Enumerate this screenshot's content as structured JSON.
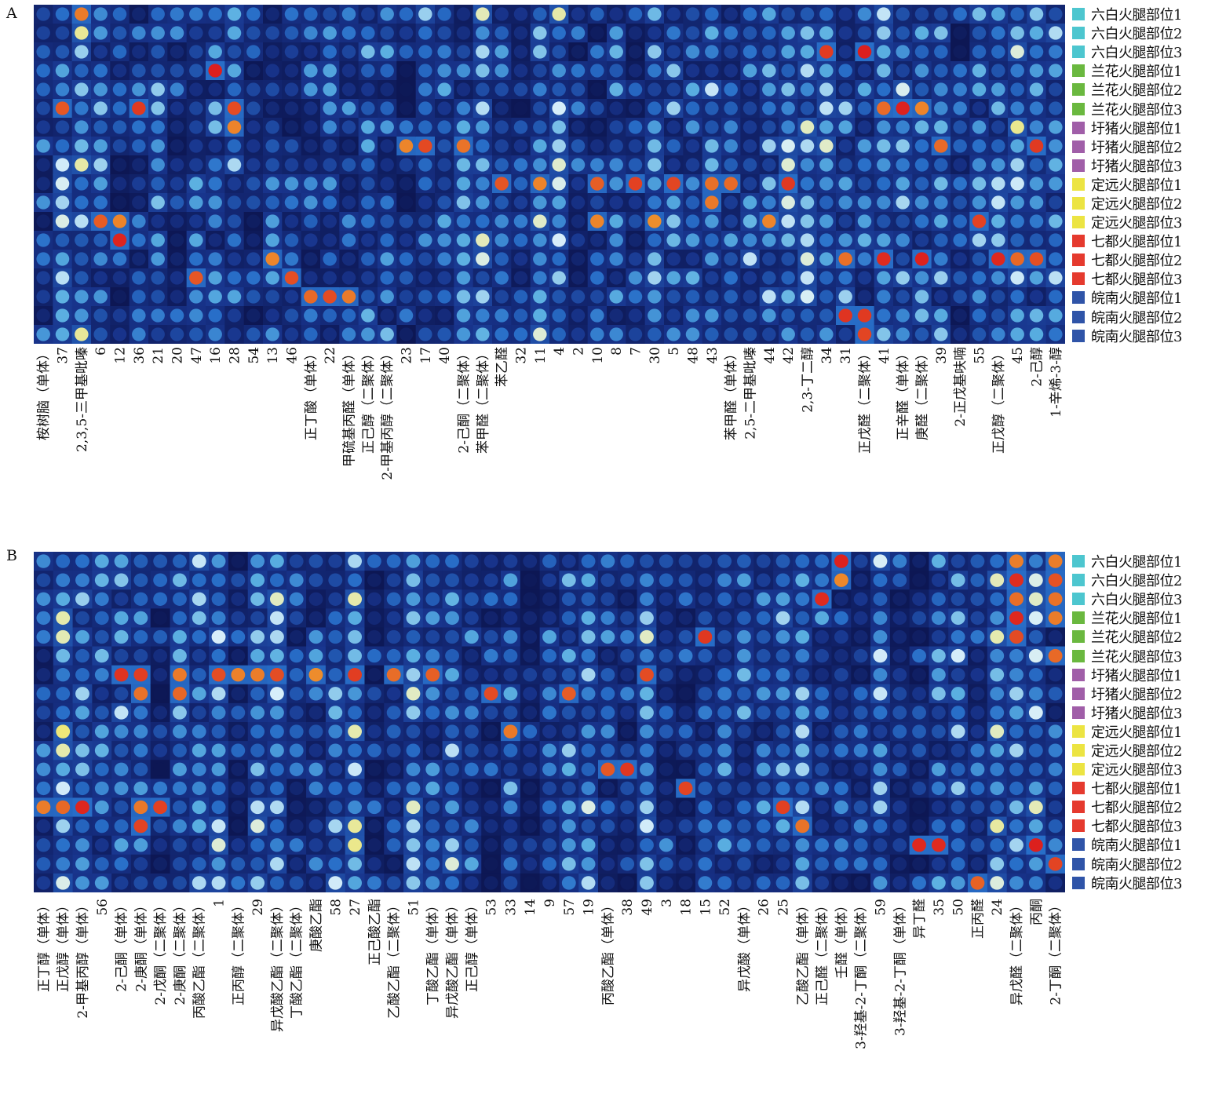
{
  "chart_data": [
    {
      "type": "heatmap",
      "panel_label": "A",
      "rows": [
        "六白火腿部位1",
        "六白火腿部位2",
        "六白火腿部位3",
        "兰花火腿部位1",
        "兰花火腿部位2",
        "兰花火腿部位3",
        "圩猪火腿部位1",
        "圩猪火腿部位2",
        "圩猪火腿部位3",
        "定远火腿部位1",
        "定远火腿部位2",
        "定远火腿部位3",
        "七都火腿部位1",
        "七都火腿部位2",
        "七都火腿部位3",
        "皖南火腿部位1",
        "皖南火腿部位2",
        "皖南火腿部位3"
      ],
      "row_colors": [
        "#4dc6cf",
        "#4dc6cf",
        "#4dc6cf",
        "#6ab83f",
        "#6ab83f",
        "#6ab83f",
        "#a05ea8",
        "#a05ea8",
        "#a05ea8",
        "#ece442",
        "#ece442",
        "#ece442",
        "#e53a2e",
        "#e53a2e",
        "#e53a2e",
        "#2f54a8",
        "#2f54a8",
        "#2f54a8"
      ],
      "columns": [
        "桉树脑（单体）",
        "37",
        "2,3,5-三甲基吡嗪",
        "6",
        "12",
        "36",
        "21",
        "20",
        "47",
        "16",
        "28",
        "54",
        "13",
        "46",
        "正丁酸（单体）",
        "22",
        "甲硫基丙醛（单体）",
        "正己醇（二聚体）",
        "2-甲基丙醇（二聚体）",
        "23",
        "17",
        "40",
        "2-己酮（二聚体）",
        "苯甲醛（二聚体）",
        "苯乙醛",
        "32",
        "11",
        "4",
        "2",
        "10",
        "8",
        "7",
        "30",
        "5",
        "48",
        "43",
        "苯甲醛（单体）",
        "2,5-二甲基吡嗪",
        "44",
        "42",
        "2,3-丁二醇",
        "34",
        "31",
        "正戊醛（二聚体）",
        "41",
        "正辛醛（单体）",
        "庚醛（二聚体）",
        "39",
        "2-正戊基呋喃",
        "55",
        "正戊醇（二聚体）",
        "45",
        "2-己醇",
        "1-辛烯-3-醇"
      ],
      "hotspots": [
        {
          "row": 5,
          "col": 1
        },
        {
          "row": 0,
          "col": 2
        },
        {
          "row": 11,
          "col": 3
        },
        {
          "row": 11,
          "col": 4
        },
        {
          "row": 12,
          "col": 4
        },
        {
          "row": 5,
          "col": 5
        },
        {
          "row": 3,
          "col": 9
        },
        {
          "row": 5,
          "col": 10
        },
        {
          "row": 6,
          "col": 10
        },
        {
          "row": 14,
          "col": 8
        },
        {
          "row": 13,
          "col": 12
        },
        {
          "row": 14,
          "col": 13
        },
        {
          "row": 15,
          "col": 14
        },
        {
          "row": 15,
          "col": 15
        },
        {
          "row": 15,
          "col": 16
        },
        {
          "row": 7,
          "col": 19
        },
        {
          "row": 7,
          "col": 20
        },
        {
          "row": 7,
          "col": 22
        },
        {
          "row": 9,
          "col": 24
        },
        {
          "row": 9,
          "col": 26
        },
        {
          "row": 9,
          "col": 29
        },
        {
          "row": 11,
          "col": 29
        },
        {
          "row": 9,
          "col": 31
        },
        {
          "row": 11,
          "col": 32
        },
        {
          "row": 9,
          "col": 33
        },
        {
          "row": 9,
          "col": 35
        },
        {
          "row": 10,
          "col": 35
        },
        {
          "row": 9,
          "col": 36
        },
        {
          "row": 11,
          "col": 38
        },
        {
          "row": 9,
          "col": 39
        },
        {
          "row": 2,
          "col": 41
        },
        {
          "row": 2,
          "col": 43
        },
        {
          "row": 5,
          "col": 44
        },
        {
          "row": 5,
          "col": 45
        },
        {
          "row": 5,
          "col": 46
        },
        {
          "row": 7,
          "col": 47
        },
        {
          "row": 13,
          "col": 42
        },
        {
          "row": 13,
          "col": 44
        },
        {
          "row": 13,
          "col": 46
        },
        {
          "row": 16,
          "col": 42
        },
        {
          "row": 16,
          "col": 43
        },
        {
          "row": 17,
          "col": 43
        },
        {
          "row": 11,
          "col": 49
        },
        {
          "row": 13,
          "col": 50
        },
        {
          "row": 13,
          "col": 51
        },
        {
          "row": 13,
          "col": 52
        },
        {
          "row": 7,
          "col": 52
        }
      ]
    },
    {
      "type": "heatmap",
      "panel_label": "B",
      "rows": [
        "六白火腿部位1",
        "六白火腿部位2",
        "六白火腿部位3",
        "兰花火腿部位1",
        "兰花火腿部位2",
        "兰花火腿部位3",
        "圩猪火腿部位1",
        "圩猪火腿部位2",
        "圩猪火腿部位3",
        "定远火腿部位1",
        "定远火腿部位2",
        "定远火腿部位3",
        "七都火腿部位1",
        "七都火腿部位2",
        "七都火腿部位3",
        "皖南火腿部位1",
        "皖南火腿部位2",
        "皖南火腿部位3"
      ],
      "row_colors": [
        "#4dc6cf",
        "#4dc6cf",
        "#4dc6cf",
        "#6ab83f",
        "#6ab83f",
        "#6ab83f",
        "#a05ea8",
        "#a05ea8",
        "#a05ea8",
        "#ece442",
        "#ece442",
        "#ece442",
        "#e53a2e",
        "#e53a2e",
        "#e53a2e",
        "#2f54a8",
        "#2f54a8",
        "#2f54a8"
      ],
      "columns": [
        "正丁醇（单体）",
        "正戊醇（单体）",
        "2-甲基丙醇（单体）",
        "56",
        "2-己酮（单体）",
        "2-庚酮（单体）",
        "2-戊酮（二聚体）",
        "2-庚酮（二聚体）",
        "丙酸乙酯（二聚体）",
        "1",
        "正丙醇（二聚体）",
        "29",
        "异戊酸乙酯（二聚体）",
        "丁酸乙酯（二聚体）",
        "庚酸乙酯",
        "58",
        "27",
        "正己酸乙酯",
        "乙酸乙酯（二聚体）",
        "51",
        "丁酸乙酯（单体）",
        "异戊酸乙酯（单体）",
        "正己醇（单体）",
        "53",
        "33",
        "14",
        "9",
        "57",
        "19",
        "丙酸乙酯（单体）",
        "38",
        "49",
        "3",
        "18",
        "15",
        "52",
        "异戊酸（单体）",
        "26",
        "25",
        "乙酸乙酯（单体）",
        "正己醛（二聚体）",
        "壬醛（单体）",
        "3-羟基-2-丁酮（二聚体）",
        "59",
        "3-羟基-2-丁酮（单体）",
        "异丁醛",
        "35",
        "50",
        "正丙醛",
        "24",
        "异戊醛（二聚体）",
        "丙酮",
        "2-丁酮（二聚体）"
      ],
      "hotspots": [
        {
          "row": 4,
          "col": 34
        },
        {
          "row": 0,
          "col": 50
        },
        {
          "row": 1,
          "col": 50
        },
        {
          "row": 2,
          "col": 50
        },
        {
          "row": 3,
          "col": 50
        },
        {
          "row": 4,
          "col": 50
        },
        {
          "row": 0,
          "col": 52
        },
        {
          "row": 1,
          "col": 52
        },
        {
          "row": 2,
          "col": 52
        },
        {
          "row": 3,
          "col": 52
        },
        {
          "row": 5,
          "col": 52
        },
        {
          "row": 6,
          "col": 4
        },
        {
          "row": 6,
          "col": 5
        },
        {
          "row": 7,
          "col": 5
        },
        {
          "row": 7,
          "col": 7
        },
        {
          "row": 6,
          "col": 7
        },
        {
          "row": 6,
          "col": 9
        },
        {
          "row": 6,
          "col": 10
        },
        {
          "row": 6,
          "col": 11
        },
        {
          "row": 6,
          "col": 12
        },
        {
          "row": 6,
          "col": 14
        },
        {
          "row": 6,
          "col": 16
        },
        {
          "row": 6,
          "col": 18
        },
        {
          "row": 6,
          "col": 20
        },
        {
          "row": 7,
          "col": 23
        },
        {
          "row": 6,
          "col": 31
        },
        {
          "row": 7,
          "col": 27
        },
        {
          "row": 9,
          "col": 24
        },
        {
          "row": 11,
          "col": 29
        },
        {
          "row": 11,
          "col": 30
        },
        {
          "row": 12,
          "col": 33
        },
        {
          "row": 13,
          "col": 0
        },
        {
          "row": 13,
          "col": 1
        },
        {
          "row": 13,
          "col": 2
        },
        {
          "row": 13,
          "col": 5
        },
        {
          "row": 13,
          "col": 6
        },
        {
          "row": 14,
          "col": 5
        },
        {
          "row": 13,
          "col": 38
        },
        {
          "row": 14,
          "col": 39
        },
        {
          "row": 15,
          "col": 45
        },
        {
          "row": 15,
          "col": 46
        },
        {
          "row": 15,
          "col": 51
        },
        {
          "row": 16,
          "col": 52
        },
        {
          "row": 17,
          "col": 48
        },
        {
          "row": 0,
          "col": 41
        },
        {
          "row": 1,
          "col": 41
        },
        {
          "row": 2,
          "col": 40
        }
      ]
    }
  ]
}
